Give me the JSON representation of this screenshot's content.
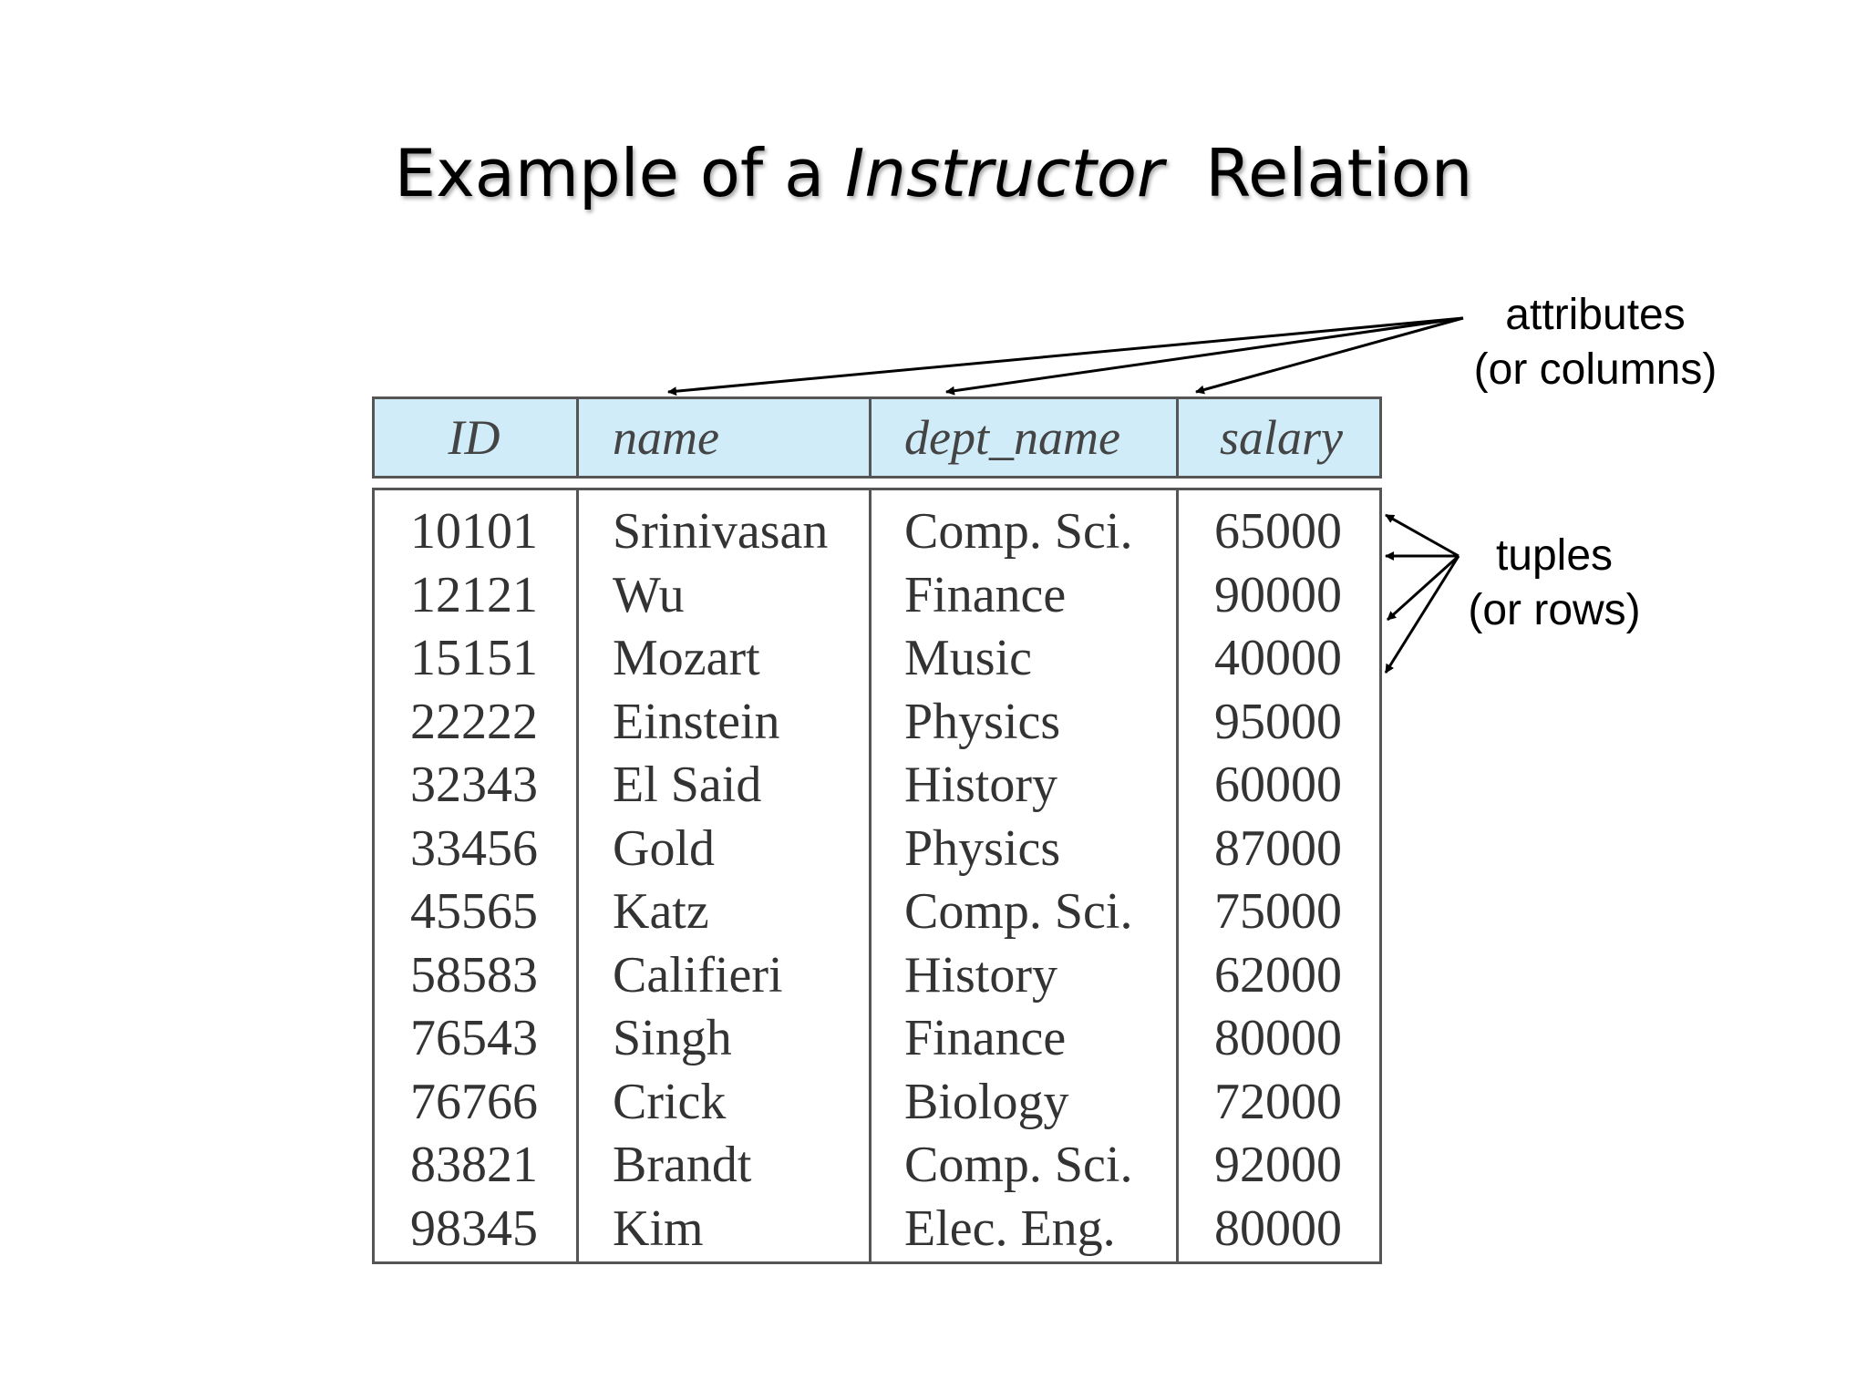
{
  "title": {
    "prefix": "Example of a ",
    "italic": "Instructor",
    "suffix": "  Relation"
  },
  "table": {
    "headers": [
      "ID",
      "name",
      "dept_name",
      "salary"
    ],
    "rows": [
      [
        "10101",
        "Srinivasan",
        "Comp. Sci.",
        "65000"
      ],
      [
        "12121",
        "Wu",
        "Finance",
        "90000"
      ],
      [
        "15151",
        "Mozart",
        "Music",
        "40000"
      ],
      [
        "22222",
        "Einstein",
        "Physics",
        "95000"
      ],
      [
        "32343",
        "El Said",
        "History",
        "60000"
      ],
      [
        "33456",
        "Gold",
        "Physics",
        "87000"
      ],
      [
        "45565",
        "Katz",
        "Comp. Sci.",
        "75000"
      ],
      [
        "58583",
        "Califieri",
        "History",
        "62000"
      ],
      [
        "76543",
        "Singh",
        "Finance",
        "80000"
      ],
      [
        "76766",
        "Crick",
        "Biology",
        "72000"
      ],
      [
        "83821",
        "Brandt",
        "Comp. Sci.",
        "92000"
      ],
      [
        "98345",
        "Kim",
        "Elec. Eng.",
        "80000"
      ]
    ],
    "header_color": "#cfecf8"
  },
  "annotations": {
    "attributes": {
      "line1": "attributes",
      "line2": "(or columns)"
    },
    "tuples": {
      "line1": "tuples",
      "line2": "(or rows)"
    }
  }
}
